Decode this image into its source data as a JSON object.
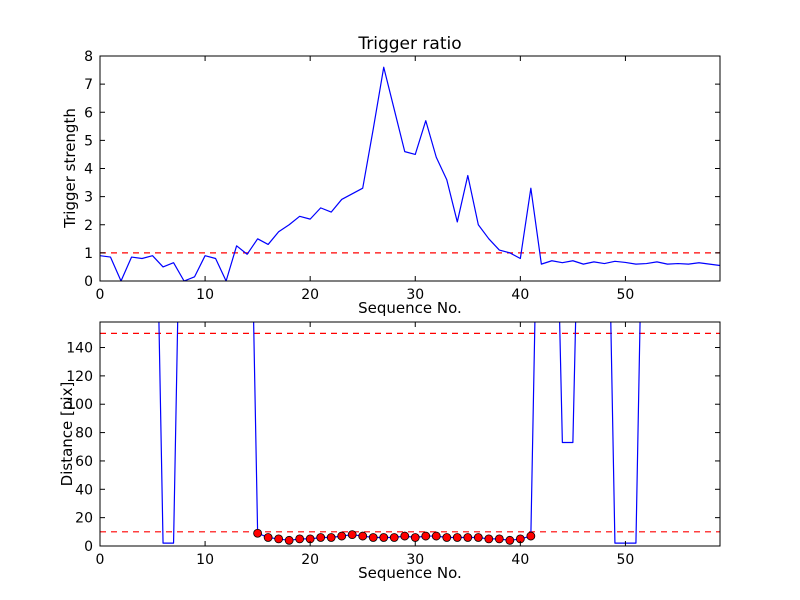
{
  "figure": {
    "background": "#ffffff",
    "line_color": "#0000ff",
    "threshold_color": "#ff0000",
    "marker_color": "#ff0000",
    "marker_edge": "#000000",
    "axes_color": "#000000"
  },
  "chart_data": [
    {
      "type": "line",
      "title": "Trigger ratio",
      "xlabel": "Sequence No.",
      "ylabel": "Trigger strength",
      "xlim": [
        0,
        59
      ],
      "ylim": [
        0,
        8
      ],
      "xticks": [
        0,
        10,
        20,
        30,
        40,
        50
      ],
      "yticks": [
        0,
        1,
        2,
        3,
        4,
        5,
        6,
        7,
        8
      ],
      "grid": false,
      "legend": "none",
      "thresholds": [
        1
      ],
      "values": [
        0.9,
        0.85,
        0.0,
        0.85,
        0.8,
        0.9,
        0.5,
        0.65,
        0.0,
        0.15,
        0.9,
        0.8,
        0.0,
        1.25,
        0.95,
        1.5,
        1.3,
        1.75,
        2.0,
        2.3,
        2.2,
        2.6,
        2.45,
        2.9,
        3.1,
        3.3,
        5.4,
        7.6,
        6.1,
        4.6,
        4.5,
        5.7,
        4.4,
        3.6,
        2.1,
        3.75,
        2.0,
        1.5,
        1.1,
        1.0,
        0.8,
        3.3,
        0.6,
        0.72,
        0.65,
        0.72,
        0.6,
        0.68,
        0.62,
        0.7,
        0.66,
        0.6,
        0.62,
        0.68,
        0.6,
        0.62,
        0.6,
        0.65,
        0.6,
        0.55
      ]
    },
    {
      "type": "line",
      "title": "",
      "xlabel": "Sequence No.",
      "ylabel": "Distance [pix]",
      "xlim": [
        0,
        59
      ],
      "ylim": [
        0,
        158
      ],
      "xticks": [
        0,
        10,
        20,
        30,
        40,
        50
      ],
      "yticks": [
        0,
        20,
        40,
        60,
        80,
        100,
        120,
        140
      ],
      "grid": false,
      "legend": "none",
      "thresholds": [
        10,
        150
      ],
      "values": [
        400,
        400,
        400,
        400,
        400,
        400,
        2,
        2,
        400,
        400,
        400,
        400,
        400,
        400,
        400,
        9,
        6,
        5,
        4,
        5,
        5,
        6,
        6,
        7,
        8,
        7,
        6,
        6,
        6,
        7,
        6,
        7,
        7,
        6,
        6,
        6,
        6,
        5,
        5,
        4,
        5,
        7,
        400,
        400,
        73,
        73,
        400,
        400,
        400,
        2,
        2,
        2,
        400,
        400,
        400,
        400,
        400,
        400,
        400,
        400
      ],
      "marker_x": [
        15,
        16,
        17,
        18,
        19,
        20,
        21,
        22,
        23,
        24,
        25,
        26,
        27,
        28,
        29,
        30,
        31,
        32,
        33,
        34,
        35,
        36,
        37,
        38,
        39,
        40,
        41
      ]
    }
  ]
}
